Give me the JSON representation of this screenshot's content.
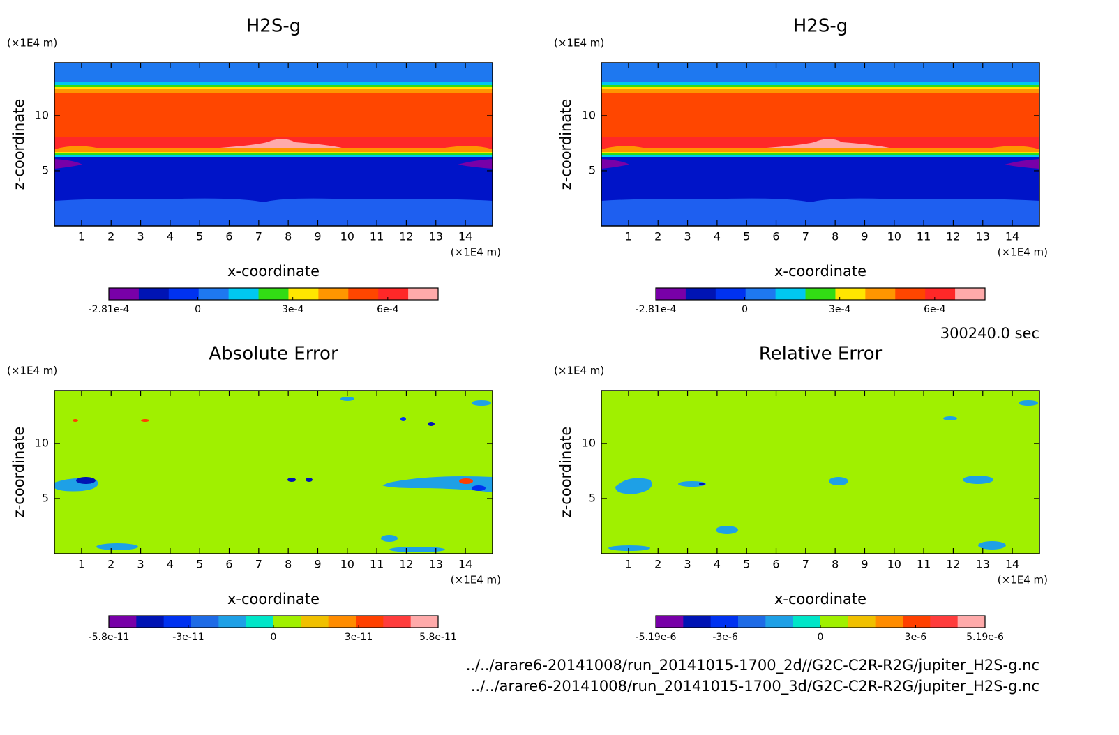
{
  "chart_data": [
    {
      "type": "contour",
      "title": "H2S-g",
      "xlabel": "x-coordinate",
      "ylabel": "z-coordinate",
      "x_unit": "(×1E4 m)",
      "y_unit": "(×1E4 m)",
      "xlim": [
        0.08,
        14.92
      ],
      "ylim": [
        0,
        14.8
      ],
      "xticks": [
        1,
        2,
        3,
        4,
        5,
        6,
        7,
        8,
        9,
        10,
        11,
        12,
        13,
        14
      ],
      "yticks": [
        5,
        10
      ],
      "colorbar": {
        "lim": [
          -0.000281,
          0.000759
        ],
        "ticks": [
          {
            "value": -0.000281,
            "label": "-2.81e-4"
          },
          0,
          {
            "value": 0.0003,
            "label": "3e-4"
          },
          {
            "value": 0.0006,
            "label": "6e-4"
          }
        ],
        "colors": [
          "#7800a8",
          "#0014b4",
          "#0032f0",
          "#1e78f0",
          "#00c8f0",
          "#32dc14",
          "#ffe600",
          "#ff9600",
          "#ff4600",
          "#ff2828",
          "#ffaaaa"
        ]
      }
    },
    {
      "type": "contour",
      "title": "H2S-g",
      "xlabel": "x-coordinate",
      "ylabel": "z-coordinate",
      "x_unit": "(×1E4 m)",
      "y_unit": "(×1E4 m)",
      "xlim": [
        0.08,
        14.92
      ],
      "ylim": [
        0,
        14.8
      ],
      "xticks": [
        1,
        2,
        3,
        4,
        5,
        6,
        7,
        8,
        9,
        10,
        11,
        12,
        13,
        14
      ],
      "yticks": [
        5,
        10
      ],
      "colorbar": {
        "lim": [
          -0.000281,
          0.000759
        ],
        "ticks": [
          {
            "value": -0.000281,
            "label": "-2.81e-4"
          },
          0,
          {
            "value": 0.0003,
            "label": "3e-4"
          },
          {
            "value": 0.0006,
            "label": "6e-4"
          }
        ],
        "colors": [
          "#7800a8",
          "#0014b4",
          "#0032f0",
          "#1e78f0",
          "#00c8f0",
          "#32dc14",
          "#ffe600",
          "#ff9600",
          "#ff4600",
          "#ff2828",
          "#ffaaaa"
        ]
      }
    },
    {
      "type": "contour",
      "title": "Absolute Error",
      "xlabel": "x-coordinate",
      "ylabel": "z-coordinate",
      "x_unit": "(×1E4 m)",
      "y_unit": "(×1E4 m)",
      "xlim": [
        0.08,
        14.92
      ],
      "ylim": [
        0,
        14.8
      ],
      "xticks": [
        1,
        2,
        3,
        4,
        5,
        6,
        7,
        8,
        9,
        10,
        11,
        12,
        13,
        14
      ],
      "yticks": [
        5,
        10
      ],
      "colorbar": {
        "lim": [
          -5.8e-11,
          5.8e-11
        ],
        "ticks": [
          {
            "value": -5.8e-11,
            "label": "-5.8e-11"
          },
          {
            "value": -3e-11,
            "label": "-3e-11"
          },
          0,
          {
            "value": 3e-11,
            "label": "3e-11"
          },
          {
            "value": 5.8e-11,
            "label": "5.8e-11"
          }
        ],
        "colors": [
          "#7800a8",
          "#0014b4",
          "#0032f0",
          "#1e6be6",
          "#1ea0e6",
          "#00e6c8",
          "#a0f000",
          "#f0c000",
          "#ff8c00",
          "#ff4000",
          "#ff3c3c",
          "#ffaaaa"
        ]
      }
    },
    {
      "type": "contour",
      "title": "Relative Error",
      "xlabel": "x-coordinate",
      "ylabel": "z-coordinate",
      "x_unit": "(×1E4 m)",
      "y_unit": "(×1E4 m)",
      "xlim": [
        0.08,
        14.92
      ],
      "ylim": [
        0,
        14.8
      ],
      "xticks": [
        1,
        2,
        3,
        4,
        5,
        6,
        7,
        8,
        9,
        10,
        11,
        12,
        13,
        14
      ],
      "yticks": [
        5,
        10
      ],
      "colorbar": {
        "lim": [
          -5.19e-06,
          5.19e-06
        ],
        "ticks": [
          {
            "value": -5.19e-06,
            "label": "-5.19e-6"
          },
          {
            "value": -3e-06,
            "label": "-3e-6"
          },
          0,
          {
            "value": 3e-06,
            "label": "3e-6"
          },
          {
            "value": 5.19e-06,
            "label": "5.19e-6"
          }
        ],
        "colors": [
          "#7800a8",
          "#0014b4",
          "#0032f0",
          "#1e6be6",
          "#1ea0e6",
          "#00e6c8",
          "#a0f000",
          "#f0c000",
          "#ff8c00",
          "#ff4000",
          "#ff3c3c",
          "#ffaaaa"
        ]
      }
    }
  ],
  "time_label": "300240.0 sec",
  "files": [
    "../../arare6-20141008/run_20141015-1700_2d//G2C-C2R-R2G/jupiter_H2S-g.nc",
    "../../arare6-20141008/run_20141015-1700_3d/G2C-C2R-R2G/jupiter_H2S-g.nc"
  ]
}
